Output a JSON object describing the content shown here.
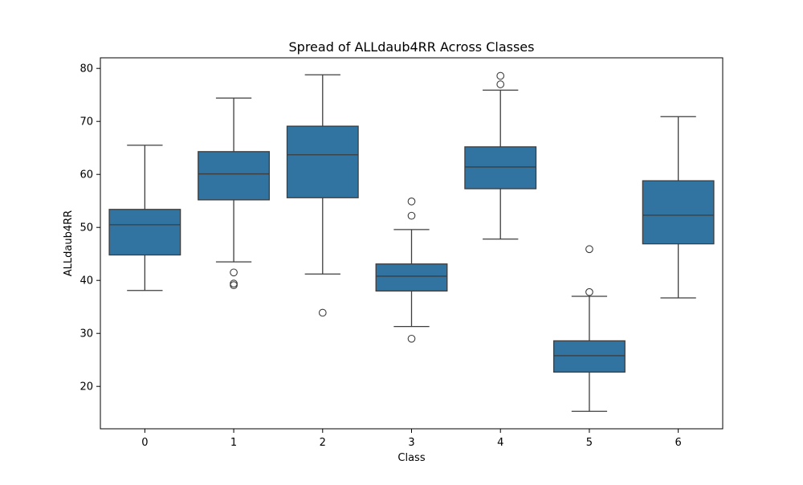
{
  "chart_data": {
    "type": "box",
    "title": "Spread of ALLdaub4RR Across Classes",
    "xlabel": "Class",
    "ylabel": "ALLdaub4RR",
    "ylim": [
      12,
      82
    ],
    "yticks": [
      20,
      30,
      40,
      50,
      60,
      70,
      80
    ],
    "grid": false,
    "colors": {
      "box": "#3274a1",
      "line": "#3d3d3d"
    },
    "categories": [
      "0",
      "1",
      "2",
      "3",
      "4",
      "5",
      "6"
    ],
    "boxes": [
      {
        "class": "0",
        "whisker_low": 38.1,
        "q1": 44.8,
        "median": 50.5,
        "q3": 53.4,
        "whisker_high": 65.5,
        "outliers": []
      },
      {
        "class": "1",
        "whisker_low": 43.5,
        "q1": 55.2,
        "median": 60.1,
        "q3": 64.3,
        "whisker_high": 74.4,
        "outliers": [
          41.5,
          39.4,
          39.1
        ]
      },
      {
        "class": "2",
        "whisker_low": 41.2,
        "q1": 55.6,
        "median": 63.7,
        "q3": 69.1,
        "whisker_high": 78.8,
        "outliers": [
          33.9
        ]
      },
      {
        "class": "3",
        "whisker_low": 31.3,
        "q1": 38.0,
        "median": 40.8,
        "q3": 43.1,
        "whisker_high": 49.6,
        "outliers": [
          54.9,
          52.2,
          29.0
        ]
      },
      {
        "class": "4",
        "whisker_low": 47.8,
        "q1": 57.3,
        "median": 61.4,
        "q3": 65.2,
        "whisker_high": 75.9,
        "outliers": [
          78.6,
          77.0
        ]
      },
      {
        "class": "5",
        "whisker_low": 15.3,
        "q1": 22.7,
        "median": 25.8,
        "q3": 28.6,
        "whisker_high": 37.0,
        "outliers": [
          45.9,
          37.8
        ]
      },
      {
        "class": "6",
        "whisker_low": 36.7,
        "q1": 46.9,
        "median": 52.3,
        "q3": 58.8,
        "whisker_high": 70.9,
        "outliers": []
      }
    ]
  }
}
